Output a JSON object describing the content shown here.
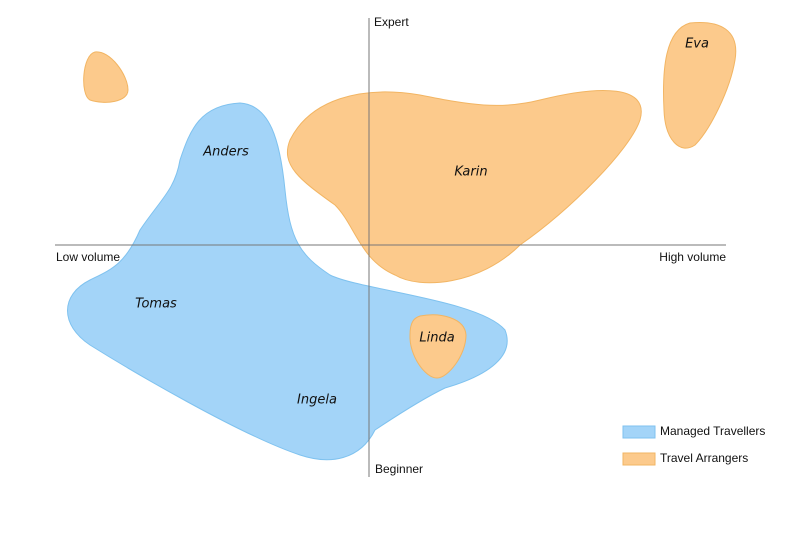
{
  "axes": {
    "top": "Expert",
    "bottom": "Beginner",
    "left": "Low volume",
    "right": "High volume"
  },
  "personas": [
    "Anders",
    "Karin",
    "Eva",
    "Tomas",
    "Linda",
    "Ingela"
  ],
  "legend": [
    "Managed Travellers",
    "Travel Arrangers"
  ]
}
